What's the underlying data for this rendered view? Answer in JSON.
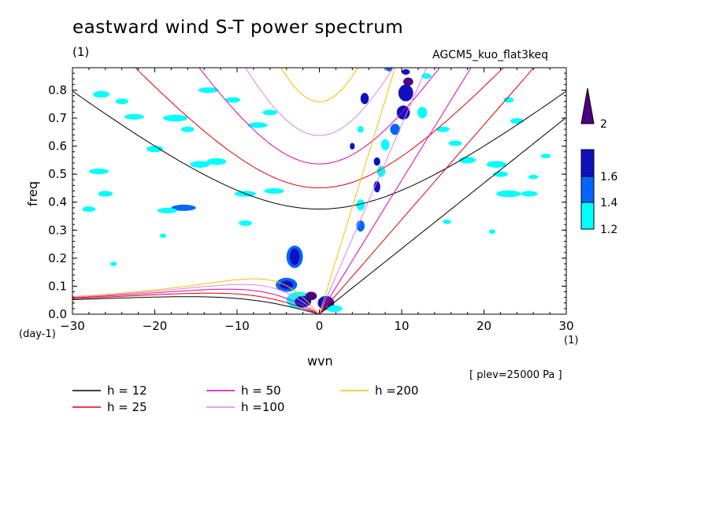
{
  "title": "eastward wind S-T power spectrum",
  "subtitle": "(1)",
  "run_name": "AGCM5_kuo_flat3keq",
  "level_note": "[ plev=25000 Pa ]",
  "chart_data": {
    "type": "heatmap",
    "xlabel": "wvn",
    "ylabel": "freq",
    "x_unit": "(1)",
    "y_unit": "(day-1)",
    "xlim": [
      -30,
      30
    ],
    "ylim": [
      0,
      0.88
    ],
    "x_ticks": [
      -30,
      -20,
      -10,
      0,
      10,
      20,
      30
    ],
    "x_tick_labels": [
      "−30",
      "−20",
      "−10",
      "0",
      "10",
      "20",
      "30"
    ],
    "y_ticks": [
      0,
      0.1,
      0.2,
      0.3,
      0.4,
      0.5,
      0.6,
      0.7,
      0.8
    ],
    "y_tick_labels": [
      "0.0",
      "0.1",
      "0.2",
      "0.3",
      "0.4",
      "0.5",
      "0.6",
      "0.7",
      "0.8"
    ],
    "colorbar": {
      "levels": [
        1.2,
        1.4,
        1.6,
        2
      ],
      "level_labels": [
        "1.2",
        "1.4",
        "1.6",
        "2"
      ],
      "colors": [
        "#00ffff",
        "#0066ff",
        "#1010c0",
        "#4b0082"
      ]
    },
    "dispersion_curves": [
      {
        "label": "h = 12",
        "h": 12,
        "color": "#000000"
      },
      {
        "label": "h = 25",
        "h": 25,
        "color": "#e00000"
      },
      {
        "label": "h = 50",
        "h": 50,
        "color": "#e000b0"
      },
      {
        "label": "h =100",
        "h": 100,
        "color": "#e080e8"
      },
      {
        "label": "h =200",
        "h": 200,
        "color": "#f0c000"
      }
    ],
    "blobs": [
      {
        "x": -26.5,
        "y": 0.785,
        "rx": 1.0,
        "ry": 0.012,
        "level": 1
      },
      {
        "x": -24.0,
        "y": 0.76,
        "rx": 0.8,
        "ry": 0.01,
        "level": 1
      },
      {
        "x": -22.5,
        "y": 0.705,
        "rx": 1.2,
        "ry": 0.01,
        "level": 1
      },
      {
        "x": -20.0,
        "y": 0.59,
        "rx": 1.0,
        "ry": 0.012,
        "level": 1
      },
      {
        "x": -26.8,
        "y": 0.51,
        "rx": 1.2,
        "ry": 0.01,
        "level": 1
      },
      {
        "x": -17.5,
        "y": 0.7,
        "rx": 1.5,
        "ry": 0.012,
        "level": 1
      },
      {
        "x": -16.0,
        "y": 0.66,
        "rx": 0.8,
        "ry": 0.01,
        "level": 1
      },
      {
        "x": -16.5,
        "y": 0.38,
        "rx": 1.5,
        "ry": 0.011,
        "level": 2
      },
      {
        "x": -18.5,
        "y": 0.37,
        "rx": 1.2,
        "ry": 0.01,
        "level": 1
      },
      {
        "x": -14.5,
        "y": 0.535,
        "rx": 1.2,
        "ry": 0.012,
        "level": 1
      },
      {
        "x": -12.5,
        "y": 0.545,
        "rx": 1.2,
        "ry": 0.012,
        "level": 1
      },
      {
        "x": -13.5,
        "y": 0.8,
        "rx": 1.2,
        "ry": 0.01,
        "level": 1
      },
      {
        "x": -10.5,
        "y": 0.765,
        "rx": 0.9,
        "ry": 0.01,
        "level": 1
      },
      {
        "x": -9.0,
        "y": 0.43,
        "rx": 1.3,
        "ry": 0.01,
        "level": 1
      },
      {
        "x": -7.5,
        "y": 0.675,
        "rx": 1.2,
        "ry": 0.01,
        "level": 1
      },
      {
        "x": -6.0,
        "y": 0.72,
        "rx": 0.9,
        "ry": 0.01,
        "level": 1
      },
      {
        "x": -5.5,
        "y": 0.44,
        "rx": 1.2,
        "ry": 0.01,
        "level": 1
      },
      {
        "x": -9.0,
        "y": 0.325,
        "rx": 0.8,
        "ry": 0.01,
        "level": 1
      },
      {
        "x": -28.0,
        "y": 0.375,
        "rx": 0.8,
        "ry": 0.01,
        "level": 1
      },
      {
        "x": -26.0,
        "y": 0.43,
        "rx": 0.9,
        "ry": 0.01,
        "level": 1
      },
      {
        "x": -25.0,
        "y": 0.18,
        "rx": 0.4,
        "ry": 0.008,
        "level": 1
      },
      {
        "x": -19.0,
        "y": 0.28,
        "rx": 0.4,
        "ry": 0.008,
        "level": 1
      },
      {
        "x": -3.0,
        "y": 0.205,
        "rx": 1.0,
        "ry": 0.04,
        "level": 2
      },
      {
        "x": -3.0,
        "y": 0.205,
        "rx": 0.6,
        "ry": 0.03,
        "level": 3
      },
      {
        "x": -4.0,
        "y": 0.105,
        "rx": 1.3,
        "ry": 0.025,
        "level": 2
      },
      {
        "x": -4.0,
        "y": 0.105,
        "rx": 0.8,
        "ry": 0.015,
        "level": 3
      },
      {
        "x": -2.5,
        "y": 0.05,
        "rx": 1.5,
        "ry": 0.03,
        "level": 1
      },
      {
        "x": -2.0,
        "y": 0.045,
        "rx": 1.0,
        "ry": 0.02,
        "level": 3
      },
      {
        "x": -1.0,
        "y": 0.065,
        "rx": 0.7,
        "ry": 0.015,
        "level": 4
      },
      {
        "x": 0.8,
        "y": 0.04,
        "rx": 1.0,
        "ry": 0.025,
        "level": 3
      },
      {
        "x": 1.2,
        "y": 0.04,
        "rx": 0.5,
        "ry": 0.015,
        "level": 4
      },
      {
        "x": 1.8,
        "y": 0.02,
        "rx": 1.0,
        "ry": 0.012,
        "level": 1
      },
      {
        "x": 5.0,
        "y": 0.315,
        "rx": 0.5,
        "ry": 0.02,
        "level": 2
      },
      {
        "x": 5.0,
        "y": 0.39,
        "rx": 0.5,
        "ry": 0.02,
        "level": 1
      },
      {
        "x": 7.0,
        "y": 0.455,
        "rx": 0.4,
        "ry": 0.02,
        "level": 3
      },
      {
        "x": 7.5,
        "y": 0.51,
        "rx": 0.5,
        "ry": 0.02,
        "level": 1
      },
      {
        "x": 7.0,
        "y": 0.545,
        "rx": 0.4,
        "ry": 0.015,
        "level": 3
      },
      {
        "x": 8.0,
        "y": 0.605,
        "rx": 0.5,
        "ry": 0.02,
        "level": 1
      },
      {
        "x": 9.2,
        "y": 0.66,
        "rx": 0.6,
        "ry": 0.02,
        "level": 2
      },
      {
        "x": 10.2,
        "y": 0.72,
        "rx": 0.8,
        "ry": 0.025,
        "level": 3
      },
      {
        "x": 10.5,
        "y": 0.79,
        "rx": 0.9,
        "ry": 0.03,
        "level": 3
      },
      {
        "x": 10.8,
        "y": 0.83,
        "rx": 0.6,
        "ry": 0.015,
        "level": 4
      },
      {
        "x": 10.5,
        "y": 0.865,
        "rx": 0.5,
        "ry": 0.01,
        "level": 3
      },
      {
        "x": 12.5,
        "y": 0.72,
        "rx": 0.6,
        "ry": 0.02,
        "level": 1
      },
      {
        "x": 5.5,
        "y": 0.77,
        "rx": 0.5,
        "ry": 0.02,
        "level": 3
      },
      {
        "x": 4.0,
        "y": 0.6,
        "rx": 0.3,
        "ry": 0.012,
        "level": 3
      },
      {
        "x": 5.0,
        "y": 0.66,
        "rx": 0.4,
        "ry": 0.012,
        "level": 1
      },
      {
        "x": 8.5,
        "y": 0.875,
        "rx": 0.4,
        "ry": 0.008,
        "level": 2
      },
      {
        "x": 15.0,
        "y": 0.66,
        "rx": 0.8,
        "ry": 0.01,
        "level": 1
      },
      {
        "x": 16.5,
        "y": 0.61,
        "rx": 0.8,
        "ry": 0.01,
        "level": 1
      },
      {
        "x": 18.0,
        "y": 0.55,
        "rx": 1.0,
        "ry": 0.012,
        "level": 1
      },
      {
        "x": 21.5,
        "y": 0.535,
        "rx": 1.2,
        "ry": 0.012,
        "level": 1
      },
      {
        "x": 22.0,
        "y": 0.5,
        "rx": 0.9,
        "ry": 0.01,
        "level": 1
      },
      {
        "x": 23.0,
        "y": 0.43,
        "rx": 1.5,
        "ry": 0.012,
        "level": 1
      },
      {
        "x": 25.5,
        "y": 0.43,
        "rx": 1.0,
        "ry": 0.01,
        "level": 1
      },
      {
        "x": 24.0,
        "y": 0.69,
        "rx": 0.8,
        "ry": 0.01,
        "level": 1
      },
      {
        "x": 15.5,
        "y": 0.33,
        "rx": 0.5,
        "ry": 0.008,
        "level": 1
      },
      {
        "x": 26.0,
        "y": 0.49,
        "rx": 0.6,
        "ry": 0.008,
        "level": 1
      },
      {
        "x": 27.5,
        "y": 0.565,
        "rx": 0.6,
        "ry": 0.008,
        "level": 1
      },
      {
        "x": 21.0,
        "y": 0.295,
        "rx": 0.4,
        "ry": 0.008,
        "level": 1
      },
      {
        "x": 13.0,
        "y": 0.85,
        "rx": 0.6,
        "ry": 0.01,
        "level": 1
      },
      {
        "x": 23.0,
        "y": 0.765,
        "rx": 0.6,
        "ry": 0.01,
        "level": 1
      }
    ]
  }
}
